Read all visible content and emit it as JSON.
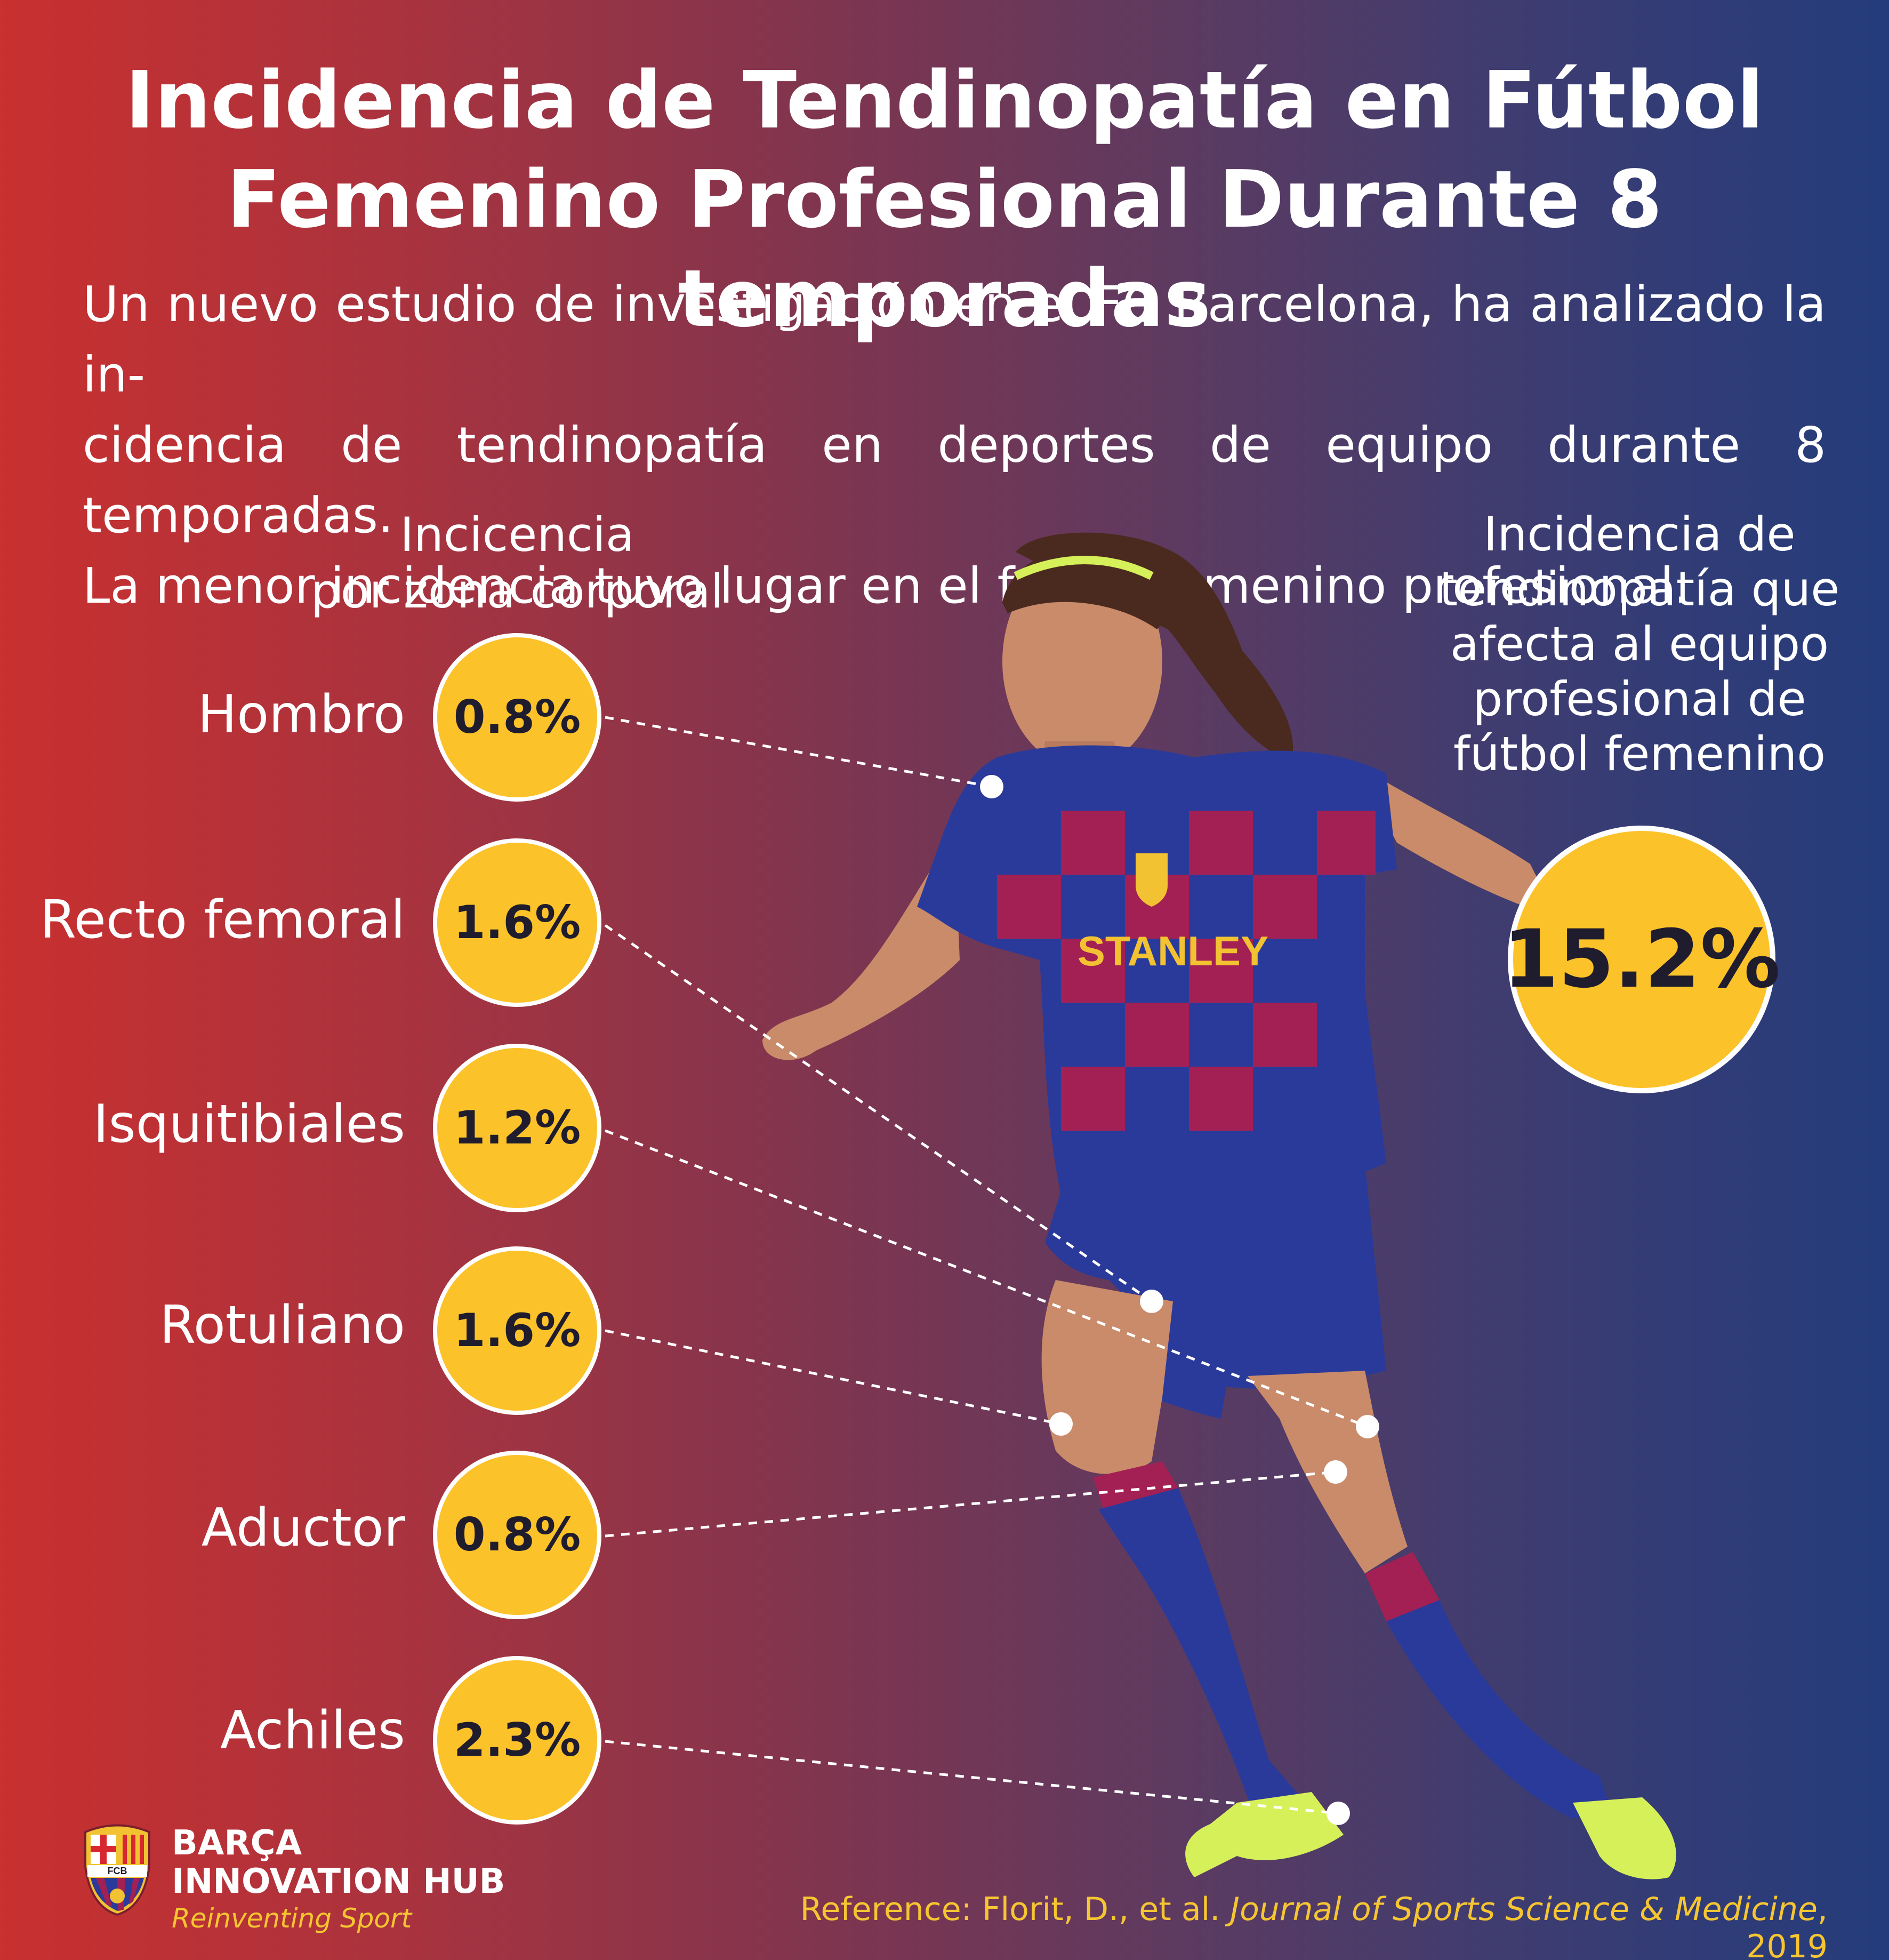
{
  "title": {
    "line1": "Incidencia de Tendinopatía en Fútbol",
    "line2": "Femenino Profesional Durante 8 temporadas"
  },
  "intro": {
    "line1": "Un nuevo estudio de investigación en el FC Barcelona, ha analizado la in-",
    "line2": "cidencia de tendinopatía en deportes de equipo durante 8 temporadas.",
    "line3": "La menor incidencia tuvo lugar en el fútbol femenino profesional."
  },
  "left_heading": {
    "line1": "Incicencia",
    "line2": "por zona corporal"
  },
  "zones": [
    {
      "label": "Hombro",
      "value": "0.8%"
    },
    {
      "label": "Recto femoral",
      "value": "1.6%"
    },
    {
      "label": "Isquitibiales",
      "value": "1.2%"
    },
    {
      "label": "Rotuliano",
      "value": "1.6%"
    },
    {
      "label": "Aductor",
      "value": "0.8%"
    },
    {
      "label": "Achiles",
      "value": "2.3%"
    }
  ],
  "right_heading": {
    "line1": "Incidencia de",
    "line2": "tendinopatía que",
    "line3": "afecta al equipo",
    "line4": "profesional de",
    "line5": "fútbol femenino"
  },
  "total": {
    "value": "15.2%"
  },
  "jersey": {
    "sponsor": "STANLEY"
  },
  "brand": {
    "line1": "BARÇA",
    "line2": "INNOVATION HUB",
    "tagline": "Reinventing Sport",
    "logo_text": "FCB"
  },
  "reference": {
    "prefix": "Reference: Florit, D., et al. ",
    "journal": "Journal of Sports Science & Medicine",
    "suffix": ", 2019"
  },
  "colors": {
    "bubble": "#fcc229",
    "bubble_text": "#1f1c2e",
    "background_left": "#c9302f",
    "background_right": "#243c7c",
    "reference_text": "#f6c532"
  }
}
